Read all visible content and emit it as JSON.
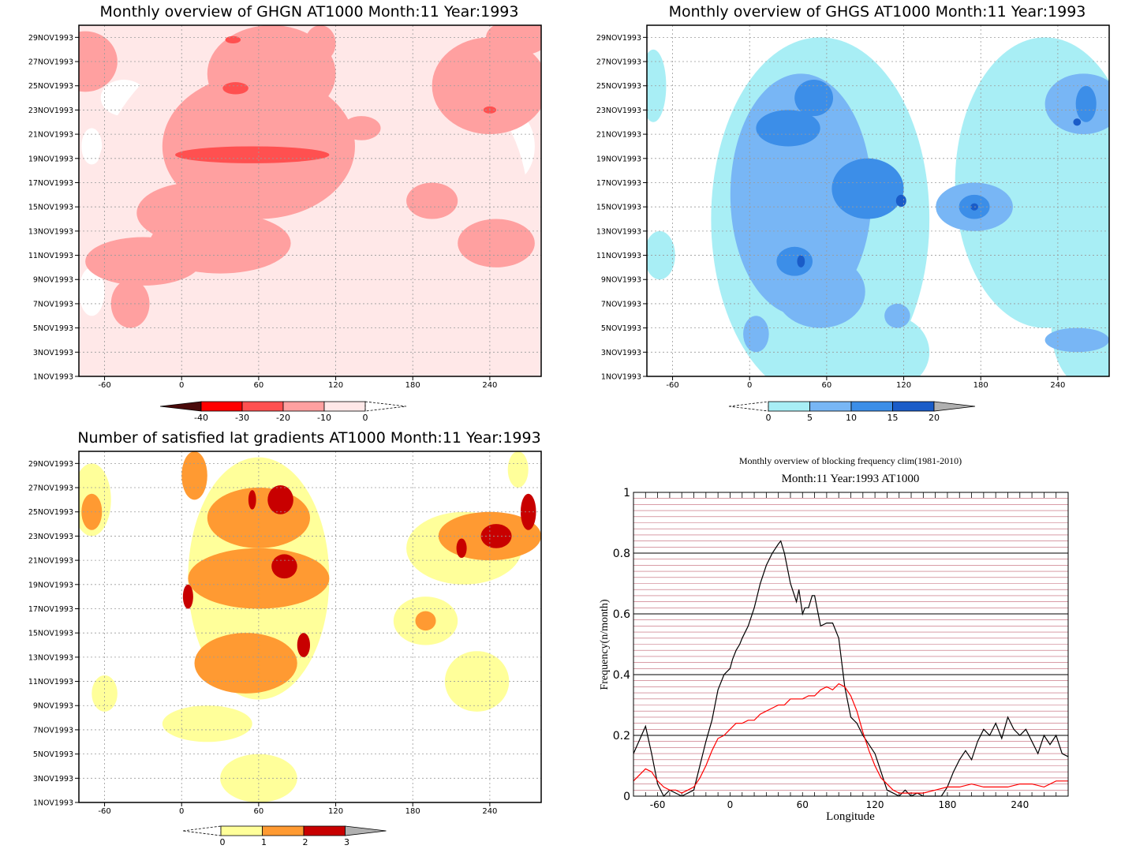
{
  "chart_data": [
    {
      "type": "heatmap",
      "title": "Monthly overview of GHGN AT1000 Month:11 Year:1993",
      "y_tick_labels": [
        "1NOV1993",
        "3NOV1993",
        "5NOV1993",
        "7NOV1993",
        "9NOV1993",
        "11NOV1993",
        "13NOV1993",
        "15NOV1993",
        "17NOV1993",
        "19NOV1993",
        "21NOV1993",
        "23NOV1993",
        "25NOV1993",
        "27NOV1993",
        "29NOV1993"
      ],
      "x_tick_labels": [
        "-60",
        "0",
        "60",
        "120",
        "180",
        "240"
      ],
      "xlim": [
        -80,
        280
      ],
      "colorbar": {
        "labels": [
          "-40",
          "-30",
          "-20",
          "-10",
          "0"
        ],
        "colors": [
          "#4a0a0a",
          "#ff0000",
          "#ff5050",
          "#ffa0a0",
          "#ffe8e8"
        ]
      },
      "blobs": [
        {
          "level": 3,
          "lon": 55,
          "day": 19.3,
          "rx": 60,
          "ry": 0.7
        },
        {
          "level": 3,
          "lon": 40,
          "day": 28.8,
          "rx": 6,
          "ry": 0.3
        },
        {
          "level": 3,
          "lon": 42,
          "day": 24.8,
          "rx": 10,
          "ry": 0.5
        },
        {
          "level": 3,
          "lon": 240,
          "day": 23.0,
          "rx": 5,
          "ry": 0.3
        },
        {
          "level": 2,
          "lon": 60,
          "day": 20,
          "rx": 75,
          "ry": 6
        },
        {
          "level": 2,
          "lon": 70,
          "day": 26,
          "rx": 50,
          "ry": 4
        },
        {
          "level": 2,
          "lon": 30,
          "day": 12,
          "rx": 55,
          "ry": 2.5
        },
        {
          "level": 2,
          "lon": 10,
          "day": 14.5,
          "rx": 45,
          "ry": 2.5
        },
        {
          "level": 2,
          "lon": -30,
          "day": 10.5,
          "rx": 45,
          "ry": 2
        },
        {
          "level": 2,
          "lon": -40,
          "day": 7,
          "rx": 15,
          "ry": 2
        },
        {
          "level": 2,
          "lon": -75,
          "day": 27,
          "rx": 25,
          "ry": 2.5
        },
        {
          "level": 2,
          "lon": 240,
          "day": 25,
          "rx": 45,
          "ry": 4
        },
        {
          "level": 2,
          "lon": 262,
          "day": 29,
          "rx": 25,
          "ry": 1.5
        },
        {
          "level": 2,
          "lon": 195,
          "day": 15.5,
          "rx": 20,
          "ry": 1.5
        },
        {
          "level": 2,
          "lon": 245,
          "day": 12,
          "rx": 30,
          "ry": 2
        },
        {
          "level": 2,
          "lon": 108,
          "day": 28.5,
          "rx": 12,
          "ry": 1.5
        },
        {
          "level": 2,
          "lon": 140,
          "day": 21.5,
          "rx": 15,
          "ry": 1
        },
        {
          "level": 1,
          "lon": 100,
          "day": 15,
          "rx": 170,
          "ry": 16
        },
        {
          "level": 1,
          "lon": 210,
          "day": 5,
          "rx": 120,
          "ry": 5
        }
      ]
    },
    {
      "type": "heatmap",
      "title": "Monthly overview of GHGS AT1000 Month:11 Year:1993",
      "y_tick_labels": [
        "1NOV1993",
        "3NOV1993",
        "5NOV1993",
        "7NOV1993",
        "9NOV1993",
        "11NOV1993",
        "13NOV1993",
        "15NOV1993",
        "17NOV1993",
        "19NOV1993",
        "21NOV1993",
        "23NOV1993",
        "25NOV1993",
        "27NOV1993",
        "29NOV1993"
      ],
      "x_tick_labels": [
        "-60",
        "0",
        "60",
        "120",
        "180",
        "240"
      ],
      "xlim": [
        -80,
        280
      ],
      "colorbar": {
        "labels": [
          "0",
          "5",
          "10",
          "15",
          "20"
        ],
        "colors": [
          "#a8eef5",
          "#78b6f5",
          "#3c8ee8",
          "#1a5cc8",
          "#b0b0b0"
        ]
      },
      "blobs": [
        {
          "level": 1,
          "lon": 55,
          "day": 14,
          "rx": 85,
          "ry": 15
        },
        {
          "level": 1,
          "lon": 230,
          "day": 17,
          "rx": 70,
          "ry": 12
        },
        {
          "level": 1,
          "lon": 265,
          "day": 5,
          "rx": 30,
          "ry": 5
        },
        {
          "level": 1,
          "lon": -70,
          "day": 11,
          "rx": 12,
          "ry": 2
        },
        {
          "level": 1,
          "lon": -75,
          "day": 25,
          "rx": 10,
          "ry": 3
        },
        {
          "level": 1,
          "lon": 110,
          "day": 3,
          "rx": 30,
          "ry": 3
        },
        {
          "level": 2,
          "lon": 40,
          "day": 16,
          "rx": 55,
          "ry": 10
        },
        {
          "level": 2,
          "lon": 55,
          "day": 8,
          "rx": 35,
          "ry": 3
        },
        {
          "level": 2,
          "lon": 175,
          "day": 15,
          "rx": 30,
          "ry": 2
        },
        {
          "level": 2,
          "lon": 260,
          "day": 23.5,
          "rx": 30,
          "ry": 2.5
        },
        {
          "level": 2,
          "lon": 255,
          "day": 4,
          "rx": 25,
          "ry": 1
        },
        {
          "level": 2,
          "lon": 5,
          "day": 4.5,
          "rx": 10,
          "ry": 1.5
        },
        {
          "level": 2,
          "lon": 115,
          "day": 6,
          "rx": 10,
          "ry": 1
        },
        {
          "level": 3,
          "lon": 30,
          "day": 21.5,
          "rx": 25,
          "ry": 1.5
        },
        {
          "level": 3,
          "lon": 50,
          "day": 24,
          "rx": 15,
          "ry": 1.5
        },
        {
          "level": 3,
          "lon": 35,
          "day": 10.5,
          "rx": 14,
          "ry": 1.2
        },
        {
          "level": 3,
          "lon": 92,
          "day": 16.5,
          "rx": 28,
          "ry": 2.5
        },
        {
          "level": 3,
          "lon": 175,
          "day": 15,
          "rx": 12,
          "ry": 1
        },
        {
          "level": 3,
          "lon": 262,
          "day": 23.5,
          "rx": 8,
          "ry": 1.5
        },
        {
          "level": 4,
          "lon": 40,
          "day": 10.5,
          "rx": 3,
          "ry": 0.5
        },
        {
          "level": 4,
          "lon": 118,
          "day": 15.5,
          "rx": 4,
          "ry": 0.5
        },
        {
          "level": 4,
          "lon": 175,
          "day": 15,
          "rx": 3,
          "ry": 0.3
        },
        {
          "level": 4,
          "lon": 255,
          "day": 22,
          "rx": 3,
          "ry": 0.3
        }
      ]
    },
    {
      "type": "heatmap",
      "title": "Number of satisfied lat gradients AT1000 Month:11 Year:1993",
      "y_tick_labels": [
        "1NOV1993",
        "3NOV1993",
        "5NOV1993",
        "7NOV1993",
        "9NOV1993",
        "11NOV1993",
        "13NOV1993",
        "15NOV1993",
        "17NOV1993",
        "19NOV1993",
        "21NOV1993",
        "23NOV1993",
        "25NOV1993",
        "27NOV1993",
        "29NOV1993"
      ],
      "x_tick_labels": [
        "-60",
        "0",
        "60",
        "120",
        "180",
        "240"
      ],
      "xlim": [
        -80,
        280
      ],
      "colorbar": {
        "labels": [
          "0",
          "1",
          "2",
          "3"
        ],
        "colors": [
          "#ffff9a",
          "#ff9a32",
          "#c80000",
          "#b0b0b0"
        ]
      },
      "blobs": [
        {
          "level": 1,
          "lon": 60,
          "day": 19.5,
          "rx": 55,
          "ry": 10
        },
        {
          "level": 1,
          "lon": 20,
          "day": 7.5,
          "rx": 35,
          "ry": 1.5
        },
        {
          "level": 1,
          "lon": 60,
          "day": 3,
          "rx": 30,
          "ry": 2
        },
        {
          "level": 1,
          "lon": -70,
          "day": 26,
          "rx": 15,
          "ry": 3
        },
        {
          "level": 1,
          "lon": 220,
          "day": 22,
          "rx": 45,
          "ry": 3
        },
        {
          "level": 1,
          "lon": 190,
          "day": 16,
          "rx": 25,
          "ry": 2
        },
        {
          "level": 1,
          "lon": 230,
          "day": 11,
          "rx": 25,
          "ry": 2.5
        },
        {
          "level": 1,
          "lon": -60,
          "day": 10,
          "rx": 10,
          "ry": 1.5
        },
        {
          "level": 1,
          "lon": 262,
          "day": 28.5,
          "rx": 8,
          "ry": 1.5
        },
        {
          "level": 2,
          "lon": 60,
          "day": 24.5,
          "rx": 40,
          "ry": 2.5
        },
        {
          "level": 2,
          "lon": 60,
          "day": 19.5,
          "rx": 55,
          "ry": 2.5
        },
        {
          "level": 2,
          "lon": 50,
          "day": 12.5,
          "rx": 40,
          "ry": 2.5
        },
        {
          "level": 2,
          "lon": 10,
          "day": 28,
          "rx": 10,
          "ry": 2
        },
        {
          "level": 2,
          "lon": 240,
          "day": 23,
          "rx": 40,
          "ry": 2
        },
        {
          "level": 2,
          "lon": 190,
          "day": 16,
          "rx": 8,
          "ry": 0.8
        },
        {
          "level": 2,
          "lon": -70,
          "day": 25,
          "rx": 8,
          "ry": 1.5
        },
        {
          "level": 3,
          "lon": 77,
          "day": 26,
          "rx": 10,
          "ry": 1.2
        },
        {
          "level": 3,
          "lon": 55,
          "day": 26,
          "rx": 3,
          "ry": 0.8
        },
        {
          "level": 3,
          "lon": 80,
          "day": 20.5,
          "rx": 10,
          "ry": 1
        },
        {
          "level": 3,
          "lon": 95,
          "day": 14,
          "rx": 5,
          "ry": 1
        },
        {
          "level": 3,
          "lon": 5,
          "day": 18,
          "rx": 4,
          "ry": 1
        },
        {
          "level": 3,
          "lon": 245,
          "day": 23,
          "rx": 12,
          "ry": 1
        },
        {
          "level": 3,
          "lon": 270,
          "day": 25,
          "rx": 6,
          "ry": 1.5
        },
        {
          "level": 3,
          "lon": 218,
          "day": 22,
          "rx": 4,
          "ry": 0.8
        }
      ]
    },
    {
      "type": "line",
      "title": "Monthly overview of blocking frequency clim(1981-2010)",
      "subtitle": "Month:11 Year:1993  AT1000",
      "xlabel": "Longitude",
      "ylabel": "Frequency(n/month)",
      "xlim": [
        -80,
        280
      ],
      "ylim": [
        0,
        1
      ],
      "x_tick_labels": [
        "-60",
        "0",
        "60",
        "120",
        "180",
        "240"
      ],
      "y_tick_labels": [
        "0",
        "0.2",
        "0.4",
        "0.6",
        "0.8",
        "1"
      ],
      "series": [
        {
          "color": "#000000",
          "x": [
            -80,
            -70,
            -65,
            -60,
            -55,
            -50,
            -40,
            -30,
            -20,
            -15,
            -10,
            -5,
            0,
            2,
            5,
            8,
            10,
            15,
            20,
            25,
            30,
            35,
            40,
            42,
            45,
            50,
            55,
            57,
            60,
            62,
            65,
            68,
            70,
            72,
            75,
            80,
            85,
            90,
            95,
            100,
            105,
            110,
            115,
            120,
            125,
            130,
            135,
            140,
            145,
            150,
            155,
            160,
            165,
            170,
            175,
            180,
            185,
            190,
            195,
            200,
            205,
            210,
            215,
            220,
            225,
            230,
            235,
            240,
            245,
            250,
            255,
            260,
            265,
            270,
            275,
            280
          ],
          "y": [
            0.14,
            0.23,
            0.14,
            0.04,
            0.0,
            0.02,
            0.0,
            0.02,
            0.18,
            0.25,
            0.35,
            0.4,
            0.42,
            0.45,
            0.48,
            0.5,
            0.52,
            0.56,
            0.62,
            0.7,
            0.76,
            0.8,
            0.83,
            0.84,
            0.8,
            0.7,
            0.64,
            0.68,
            0.6,
            0.62,
            0.62,
            0.66,
            0.66,
            0.62,
            0.56,
            0.57,
            0.57,
            0.52,
            0.36,
            0.26,
            0.24,
            0.2,
            0.17,
            0.14,
            0.08,
            0.02,
            0.01,
            0.0,
            0.02,
            0.0,
            0.01,
            0.0,
            0.0,
            0.0,
            0.0,
            0.03,
            0.08,
            0.12,
            0.15,
            0.12,
            0.18,
            0.22,
            0.2,
            0.24,
            0.19,
            0.26,
            0.22,
            0.2,
            0.22,
            0.18,
            0.14,
            0.2,
            0.17,
            0.2,
            0.14,
            0.13
          ]
        },
        {
          "color": "#ff0000",
          "x": [
            -80,
            -75,
            -70,
            -65,
            -60,
            -55,
            -50,
            -45,
            -40,
            -35,
            -30,
            -25,
            -20,
            -15,
            -10,
            -5,
            0,
            5,
            10,
            15,
            20,
            25,
            30,
            35,
            40,
            45,
            50,
            55,
            60,
            65,
            70,
            75,
            80,
            85,
            90,
            95,
            100,
            105,
            110,
            115,
            120,
            125,
            130,
            135,
            140,
            145,
            150,
            160,
            170,
            180,
            190,
            200,
            210,
            220,
            230,
            240,
            250,
            260,
            270,
            280
          ],
          "y": [
            0.05,
            0.07,
            0.09,
            0.08,
            0.05,
            0.03,
            0.02,
            0.02,
            0.01,
            0.02,
            0.03,
            0.06,
            0.1,
            0.15,
            0.19,
            0.2,
            0.22,
            0.24,
            0.24,
            0.25,
            0.25,
            0.27,
            0.28,
            0.29,
            0.3,
            0.3,
            0.32,
            0.32,
            0.32,
            0.33,
            0.33,
            0.35,
            0.36,
            0.35,
            0.37,
            0.36,
            0.33,
            0.28,
            0.21,
            0.15,
            0.1,
            0.06,
            0.04,
            0.02,
            0.01,
            0.01,
            0.01,
            0.01,
            0.02,
            0.03,
            0.03,
            0.04,
            0.03,
            0.03,
            0.03,
            0.04,
            0.04,
            0.03,
            0.05,
            0.05
          ]
        }
      ]
    }
  ]
}
